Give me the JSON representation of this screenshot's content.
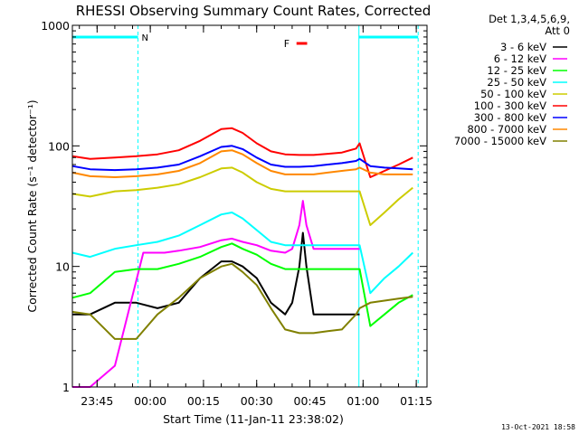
{
  "chart_data": {
    "type": "line",
    "title": "RHESSI Observing Summary Count Rates, Corrected",
    "xlabel": "Start Time (11-Jan-11 23:38:02)",
    "ylabel": "Corrected Count Rate (s⁻¹ detector⁻¹)",
    "x_start_hours": 23.63,
    "x_range_minutes": [
      0,
      100
    ],
    "yscale": "log",
    "ylim": [
      1,
      1000
    ],
    "xticks": [
      "23:45",
      "00:00",
      "00:15",
      "00:30",
      "00:45",
      "01:00",
      "01:15"
    ],
    "xtick_minutes": [
      6.97,
      21.97,
      36.97,
      51.97,
      66.97,
      81.97,
      96.97
    ],
    "yticks": [
      "1",
      "10",
      "100",
      "1000"
    ],
    "ytick_values": [
      1,
      10,
      100,
      1000
    ],
    "legend_header": [
      "Det 1,3,4,5,6,9,",
      "Att 0"
    ],
    "legend_placement": "right",
    "timestamp": "13-Oct-2021 18:58",
    "annotations": {
      "night_label": "N",
      "night_intervals": [
        [
          0,
          18.5
        ],
        [
          80.8,
          97.5
        ]
      ],
      "flare_label": "F",
      "flare_interval": [
        63.2,
        66.2
      ]
    },
    "series": [
      {
        "name": "3 - 6 keV",
        "color": "#000000",
        "x": [
          0,
          5,
          12,
          18,
          24,
          30,
          36,
          42,
          45,
          48,
          52,
          56,
          60,
          62,
          64,
          65,
          66,
          68,
          72,
          76,
          80,
          81
        ],
        "y": [
          4.0,
          4.0,
          5.0,
          5.0,
          4.5,
          5.0,
          8.0,
          11,
          11,
          10,
          8.0,
          5.0,
          4.0,
          5.0,
          10,
          19,
          10,
          4.0,
          4.0,
          4.0,
          4.0,
          4.0
        ]
      },
      {
        "name": "6 - 12 keV",
        "color": "#ff00ff",
        "x": [
          0,
          5,
          12,
          20,
          26,
          30,
          36,
          42,
          45,
          48,
          52,
          56,
          60,
          62,
          64,
          65,
          66,
          68,
          72,
          76,
          80,
          81
        ],
        "y": [
          1.0,
          1.0,
          1.5,
          13,
          13,
          13.5,
          14.5,
          16.5,
          17,
          16,
          15,
          13.5,
          13,
          14,
          22,
          35,
          22,
          14,
          14,
          14,
          14,
          14
        ]
      },
      {
        "name": "12 - 25 keV",
        "color": "#00ff00",
        "x": [
          0,
          5,
          12,
          18,
          24,
          30,
          36,
          42,
          45,
          48,
          52,
          56,
          60,
          64,
          68,
          72,
          76,
          80,
          81,
          84,
          88,
          92,
          96
        ],
        "y": [
          5.5,
          6.0,
          9.0,
          9.5,
          9.5,
          10.5,
          12,
          14.5,
          15.5,
          14,
          12.5,
          10.5,
          9.5,
          9.5,
          9.5,
          9.5,
          9.5,
          9.5,
          9.5,
          3.2,
          4.0,
          5.0,
          5.8
        ]
      },
      {
        "name": "25 - 50 keV",
        "color": "#00ffff",
        "x": [
          0,
          5,
          12,
          18,
          24,
          30,
          36,
          42,
          45,
          48,
          52,
          56,
          60,
          64,
          68,
          72,
          76,
          80,
          81,
          84,
          88,
          92,
          96
        ],
        "y": [
          13,
          12,
          14,
          15,
          16,
          18,
          22,
          27,
          28,
          25,
          20,
          16,
          15,
          15,
          15,
          15,
          15,
          15,
          15,
          6,
          8,
          10,
          13
        ]
      },
      {
        "name": "50 - 100 keV",
        "color": "#cccc00",
        "x": [
          0,
          5,
          12,
          18,
          24,
          30,
          36,
          42,
          45,
          48,
          52,
          56,
          60,
          64,
          68,
          72,
          76,
          80,
          81,
          84,
          88,
          92,
          96
        ],
        "y": [
          40,
          38,
          42,
          43,
          45,
          48,
          55,
          65,
          66,
          60,
          50,
          44,
          42,
          42,
          42,
          42,
          42,
          42,
          42,
          22,
          28,
          36,
          45
        ]
      },
      {
        "name": "100 - 300 keV",
        "color": "#ff0000",
        "x": [
          0,
          5,
          12,
          18,
          24,
          30,
          36,
          42,
          45,
          48,
          52,
          56,
          60,
          64,
          68,
          72,
          76,
          80,
          81,
          84,
          88,
          92,
          96
        ],
        "y": [
          82,
          78,
          80,
          82,
          85,
          92,
          110,
          138,
          140,
          128,
          105,
          90,
          85,
          84,
          84,
          86,
          88,
          95,
          105,
          55,
          62,
          70,
          80
        ]
      },
      {
        "name": "300 - 800 keV",
        "color": "#0000ff",
        "x": [
          0,
          5,
          12,
          18,
          24,
          30,
          36,
          42,
          45,
          48,
          52,
          56,
          60,
          64,
          68,
          72,
          76,
          80,
          81,
          84,
          88,
          92,
          96
        ],
        "y": [
          68,
          64,
          63,
          64,
          66,
          70,
          82,
          98,
          100,
          94,
          80,
          70,
          67,
          67,
          68,
          70,
          72,
          75,
          78,
          68,
          66,
          65,
          64
        ]
      },
      {
        "name": "800 - 7000 keV",
        "color": "#ff8800",
        "x": [
          0,
          5,
          12,
          18,
          24,
          30,
          36,
          42,
          45,
          48,
          52,
          56,
          60,
          64,
          68,
          72,
          76,
          80,
          81,
          84,
          88,
          92,
          96
        ],
        "y": [
          60,
          56,
          55,
          56,
          58,
          62,
          72,
          90,
          92,
          85,
          72,
          62,
          58,
          58,
          58,
          60,
          62,
          64,
          66,
          60,
          58,
          58,
          58
        ]
      },
      {
        "name": "7000 - 15000 keV",
        "color": "#808000",
        "x": [
          0,
          5,
          12,
          18,
          24,
          30,
          36,
          42,
          45,
          48,
          52,
          56,
          60,
          64,
          68,
          72,
          76,
          80,
          81,
          84,
          88,
          92,
          96
        ],
        "y": [
          4.2,
          4.0,
          2.5,
          2.5,
          4.0,
          5.5,
          8.0,
          10,
          10.5,
          9.0,
          7.0,
          4.5,
          3.0,
          2.8,
          2.8,
          2.9,
          3.0,
          4.0,
          4.5,
          5.0,
          5.2,
          5.4,
          5.6
        ]
      }
    ]
  }
}
